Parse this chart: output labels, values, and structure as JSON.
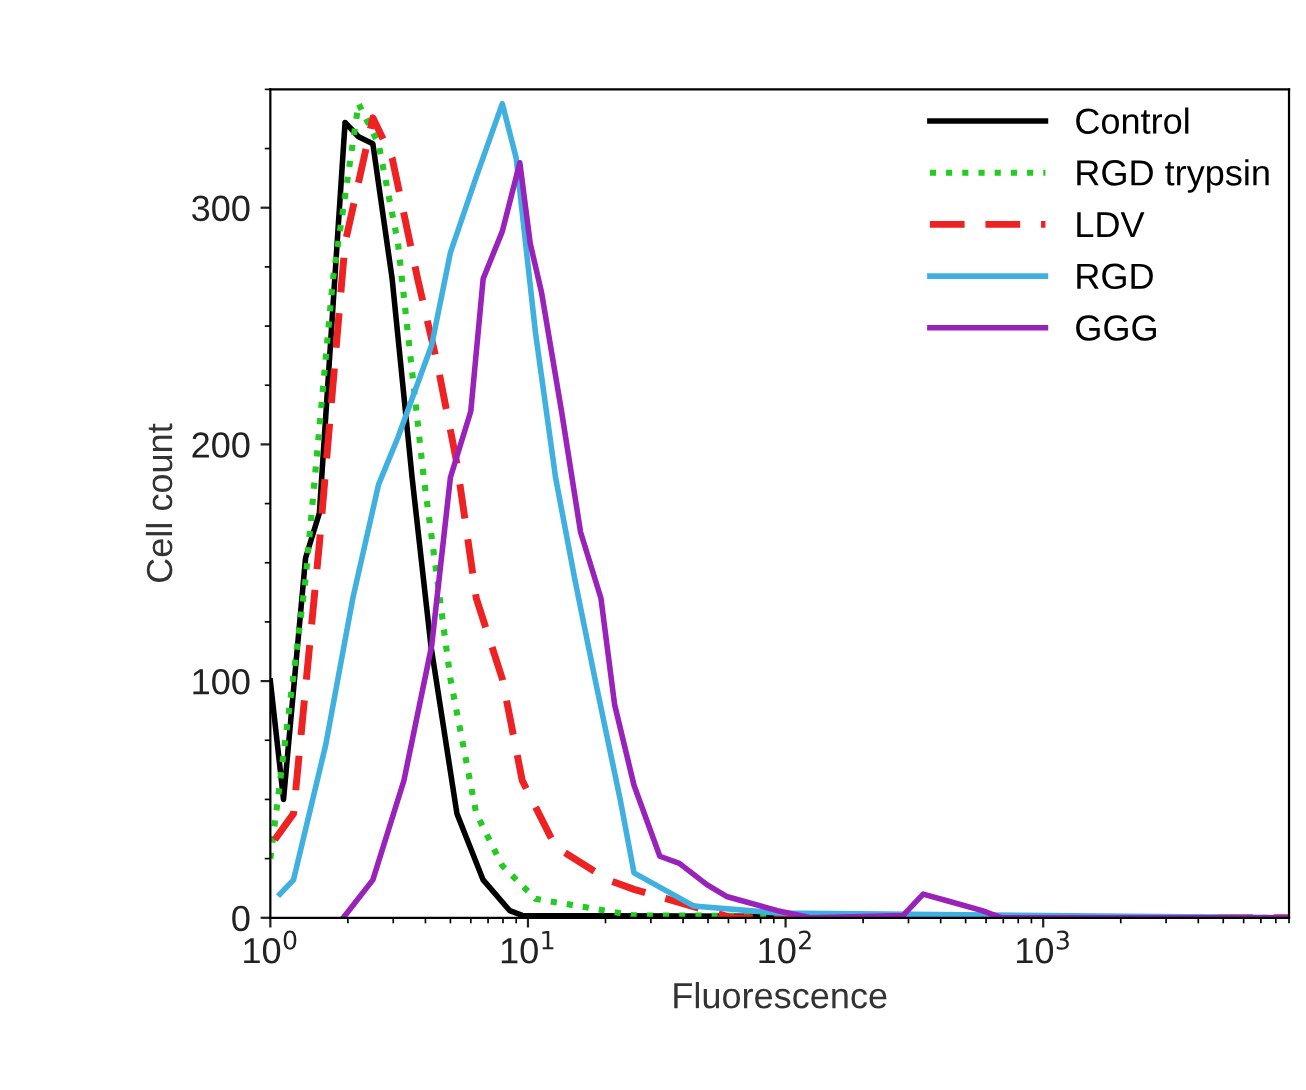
{
  "chart_data": {
    "type": "line",
    "xlabel": "Fluorescence",
    "ylabel": "Cell count",
    "log": "x",
    "xlim": [
      1,
      9000
    ],
    "ylim": [
      0,
      350
    ],
    "xticks": [
      {
        "value": 1,
        "label": "10$^{0}$"
      },
      {
        "value": 10,
        "label": "10$^{1}$"
      },
      {
        "value": 100,
        "label": "10$^{2}$"
      },
      {
        "value": 1000,
        "label": "10$^{3}$"
      }
    ],
    "yticks": [
      0,
      100,
      200,
      300
    ],
    "grid": false,
    "legend": "top right",
    "marker": "none",
    "series": [
      {
        "name": "Control",
        "color": "#000000",
        "line_style": "solid",
        "x": [
          1,
          1.125,
          1.37,
          1.55,
          1.95,
          2.2,
          2.5,
          2.97,
          3.55,
          4.2,
          5.3,
          6.7,
          8.5,
          9.5,
          9000
        ],
        "values": [
          100,
          50,
          152,
          171,
          336,
          330,
          327,
          270,
          186,
          115,
          44,
          16,
          3,
          1,
          0
        ]
      },
      {
        "name": "RGD trypsin",
        "color": "#22cc22",
        "line_style": "dotted",
        "x": [
          1,
          1.37,
          1.75,
          2.2,
          2.63,
          3.13,
          3.94,
          5.0,
          6.3,
          7.95,
          10.7,
          25.8,
          9000
        ],
        "values": [
          25,
          143,
          270,
          344,
          327,
          285,
          186,
          101,
          44,
          22,
          8,
          1,
          0
        ]
      },
      {
        "name": "LDV",
        "color": "#ee2222",
        "line_style": "dashed",
        "x": [
          1.04,
          1.23,
          1.55,
          1.95,
          2.5,
          2.97,
          3.73,
          4.45,
          5.3,
          6.3,
          7.95,
          9.5,
          12.8,
          20.5,
          25.8,
          62,
          9000
        ],
        "values": [
          33,
          44,
          158,
          285,
          338,
          321,
          270,
          234,
          192,
          135,
          101,
          58,
          30,
          16,
          12,
          0,
          0
        ]
      },
      {
        "name": "RGD",
        "color": "#40b0e0",
        "line_style": "solid",
        "x": [
          1.09,
          1.23,
          1.64,
          2.09,
          2.63,
          3.13,
          4.23,
          5.0,
          6.3,
          7.95,
          9.0,
          10.7,
          12.8,
          15.2,
          18.2,
          22.8,
          25.8,
          43.9,
          93,
          9000
        ],
        "values": [
          10,
          16,
          73,
          135,
          183,
          203,
          242,
          281,
          313,
          344,
          321,
          247,
          186,
          143,
          101,
          50,
          19,
          5,
          2,
          0
        ]
      },
      {
        "name": "GGG",
        "color": "#9922bb",
        "line_style": "solid",
        "x": [
          1.92,
          2.5,
          3.3,
          4.23,
          5.0,
          6.0,
          6.7,
          7.95,
          9.3,
          10.2,
          11.3,
          13.5,
          16.0,
          19.2,
          21.7,
          25.8,
          32.5,
          38.7,
          49.5,
          59,
          93,
          125,
          286,
          342,
          430,
          580,
          690,
          9000
        ],
        "values": [
          0,
          16,
          58,
          115,
          186,
          214,
          270,
          290,
          319,
          285,
          264,
          214,
          163,
          135,
          90,
          56,
          26,
          23,
          14,
          9,
          3,
          0,
          1,
          10,
          7,
          3,
          0,
          0
        ]
      }
    ]
  }
}
